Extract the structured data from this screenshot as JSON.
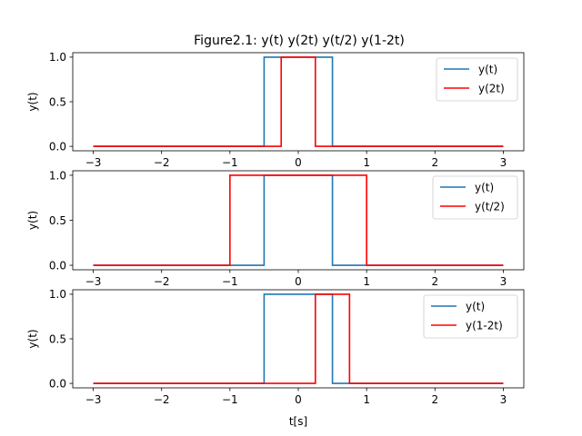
{
  "title": "Figure2.1: y(t) y(2t) y(t/2) y(1-2t)",
  "chart_data": [
    {
      "type": "line",
      "ylabel": "y(t)",
      "xlabel": "",
      "xlim": [
        -3.3,
        3.3
      ],
      "ylim": [
        -0.05,
        1.05
      ],
      "xticks": [
        -3,
        -2,
        -1,
        0,
        1,
        2,
        3
      ],
      "xtick_labels": [
        "−3",
        "−2",
        "−1",
        "0",
        "1",
        "2",
        "3"
      ],
      "yticks": [
        0.0,
        0.5,
        1.0
      ],
      "ytick_labels": [
        "0.0",
        "0.5",
        "1.0"
      ],
      "legend_position": "top-right",
      "series": [
        {
          "name": "y(t)",
          "color": "#1f77b4",
          "x": [
            -3,
            -0.5,
            -0.5,
            0.5,
            0.5,
            3
          ],
          "y": [
            0,
            0,
            1,
            1,
            0,
            0
          ]
        },
        {
          "name": "y(2t)",
          "color": "#ff0000",
          "x": [
            -3,
            -0.25,
            -0.25,
            0.25,
            0.25,
            3
          ],
          "y": [
            0,
            0,
            1,
            1,
            0,
            0
          ]
        }
      ]
    },
    {
      "type": "line",
      "ylabel": "y(t)",
      "xlabel": "",
      "xlim": [
        -3.3,
        3.3
      ],
      "ylim": [
        -0.05,
        1.05
      ],
      "xticks": [
        -3,
        -2,
        -1,
        0,
        1,
        2,
        3
      ],
      "xtick_labels": [
        "−3",
        "−2",
        "−1",
        "0",
        "1",
        "2",
        "3"
      ],
      "yticks": [
        0.0,
        0.5,
        1.0
      ],
      "ytick_labels": [
        "0.0",
        "0.5",
        "1.0"
      ],
      "legend_position": "top-right",
      "series": [
        {
          "name": "y(t)",
          "color": "#1f77b4",
          "x": [
            -3,
            -0.5,
            -0.5,
            0.5,
            0.5,
            3
          ],
          "y": [
            0,
            0,
            1,
            1,
            0,
            0
          ]
        },
        {
          "name": "y(t/2)",
          "color": "#ff0000",
          "x": [
            -3,
            -1,
            -1,
            1,
            1,
            3
          ],
          "y": [
            0,
            0,
            1,
            1,
            0,
            0
          ]
        }
      ]
    },
    {
      "type": "line",
      "ylabel": "y(t)",
      "xlabel": "t[s]",
      "xlim": [
        -3.3,
        3.3
      ],
      "ylim": [
        -0.05,
        1.05
      ],
      "xticks": [
        -3,
        -2,
        -1,
        0,
        1,
        2,
        3
      ],
      "xtick_labels": [
        "−3",
        "−2",
        "−1",
        "0",
        "1",
        "2",
        "3"
      ],
      "yticks": [
        0.0,
        0.5,
        1.0
      ],
      "ytick_labels": [
        "0.0",
        "0.5",
        "1.0"
      ],
      "legend_position": "top-right",
      "series": [
        {
          "name": "y(t)",
          "color": "#1f77b4",
          "x": [
            -3,
            -0.5,
            -0.5,
            0.5,
            0.5,
            3
          ],
          "y": [
            0,
            0,
            1,
            1,
            0,
            0
          ]
        },
        {
          "name": "y(1-2t)",
          "color": "#ff0000",
          "x": [
            -3,
            0.25,
            0.25,
            0.75,
            0.75,
            3
          ],
          "y": [
            0,
            0,
            1,
            1,
            0,
            0
          ]
        }
      ]
    }
  ]
}
